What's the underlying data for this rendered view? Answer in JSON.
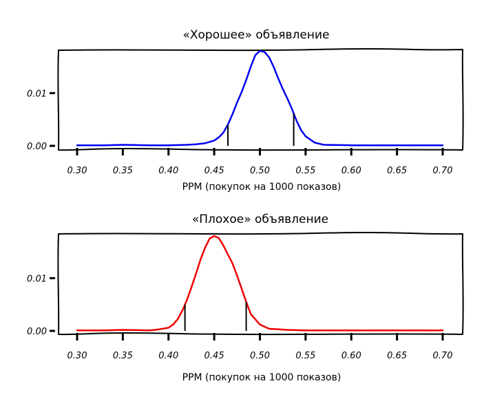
{
  "chart_data": [
    {
      "type": "line",
      "title": "«Хорошее» объявление",
      "xlabel": "PPM (покупок на 1000 показов)",
      "ylabel": "",
      "xlim": [
        0.3,
        0.7
      ],
      "ylim": [
        0.0,
        0.018
      ],
      "x_ticks": [
        0.3,
        0.35,
        0.4,
        0.45,
        0.5,
        0.55,
        0.6,
        0.65,
        0.7
      ],
      "x_tick_labels": [
        "0.30",
        "0.35",
        "0.40",
        "0.45",
        "0.50",
        "0.55",
        "0.60",
        "0.65",
        "0.70"
      ],
      "y_ticks": [
        0.0,
        0.01
      ],
      "y_tick_labels": [
        "0.00",
        "0.01"
      ],
      "series": [
        {
          "color": "#0000ee",
          "x": [
            0.3,
            0.33,
            0.35,
            0.38,
            0.4,
            0.42,
            0.43,
            0.44,
            0.45,
            0.455,
            0.46,
            0.465,
            0.47,
            0.475,
            0.48,
            0.485,
            0.49,
            0.495,
            0.5,
            0.505,
            0.51,
            0.515,
            0.52,
            0.525,
            0.53,
            0.535,
            0.54,
            0.545,
            0.55,
            0.56,
            0.57,
            0.6,
            0.65,
            0.7
          ],
          "y": [
            0.0001,
            0.0001,
            0.0002,
            0.0001,
            0.0001,
            0.0002,
            0.0003,
            0.0005,
            0.001,
            0.0016,
            0.0025,
            0.004,
            0.006,
            0.0082,
            0.0102,
            0.0125,
            0.015,
            0.0172,
            0.018,
            0.0178,
            0.0168,
            0.015,
            0.0128,
            0.0108,
            0.009,
            0.007,
            0.0048,
            0.003,
            0.0018,
            0.0006,
            0.0002,
            0.0001,
            0.0001,
            0.0001
          ]
        }
      ],
      "ci_markers": [
        0.465,
        0.537
      ],
      "grid": false
    },
    {
      "type": "line",
      "title": "«Плохое» объявление",
      "xlabel": "PPM (покупок на 1000 показов)",
      "ylabel": "",
      "xlim": [
        0.3,
        0.7
      ],
      "ylim": [
        0.0,
        0.018
      ],
      "x_ticks": [
        0.3,
        0.35,
        0.4,
        0.45,
        0.5,
        0.55,
        0.6,
        0.65,
        0.7
      ],
      "x_tick_labels": [
        "0.30",
        "0.35",
        "0.40",
        "0.45",
        "0.50",
        "0.55",
        "0.60",
        "0.65",
        "0.70"
      ],
      "y_ticks": [
        0.0,
        0.01
      ],
      "y_tick_labels": [
        "0.00",
        "0.01"
      ],
      "series": [
        {
          "color": "#ee0000",
          "x": [
            0.3,
            0.33,
            0.35,
            0.38,
            0.39,
            0.4,
            0.405,
            0.41,
            0.415,
            0.42,
            0.425,
            0.43,
            0.435,
            0.44,
            0.445,
            0.45,
            0.455,
            0.46,
            0.465,
            0.47,
            0.475,
            0.48,
            0.485,
            0.49,
            0.5,
            0.51,
            0.53,
            0.55,
            0.6,
            0.65,
            0.7
          ],
          "y": [
            0.0001,
            0.0001,
            0.0002,
            0.0001,
            0.0003,
            0.0006,
            0.0012,
            0.0022,
            0.0038,
            0.0058,
            0.0082,
            0.0108,
            0.0135,
            0.0158,
            0.0175,
            0.018,
            0.0176,
            0.0162,
            0.0145,
            0.0128,
            0.0105,
            0.008,
            0.0055,
            0.0032,
            0.0012,
            0.0004,
            0.0002,
            0.0001,
            0.0001,
            0.0001,
            0.0001
          ]
        }
      ],
      "ci_markers": [
        0.418,
        0.485
      ],
      "grid": false
    }
  ]
}
